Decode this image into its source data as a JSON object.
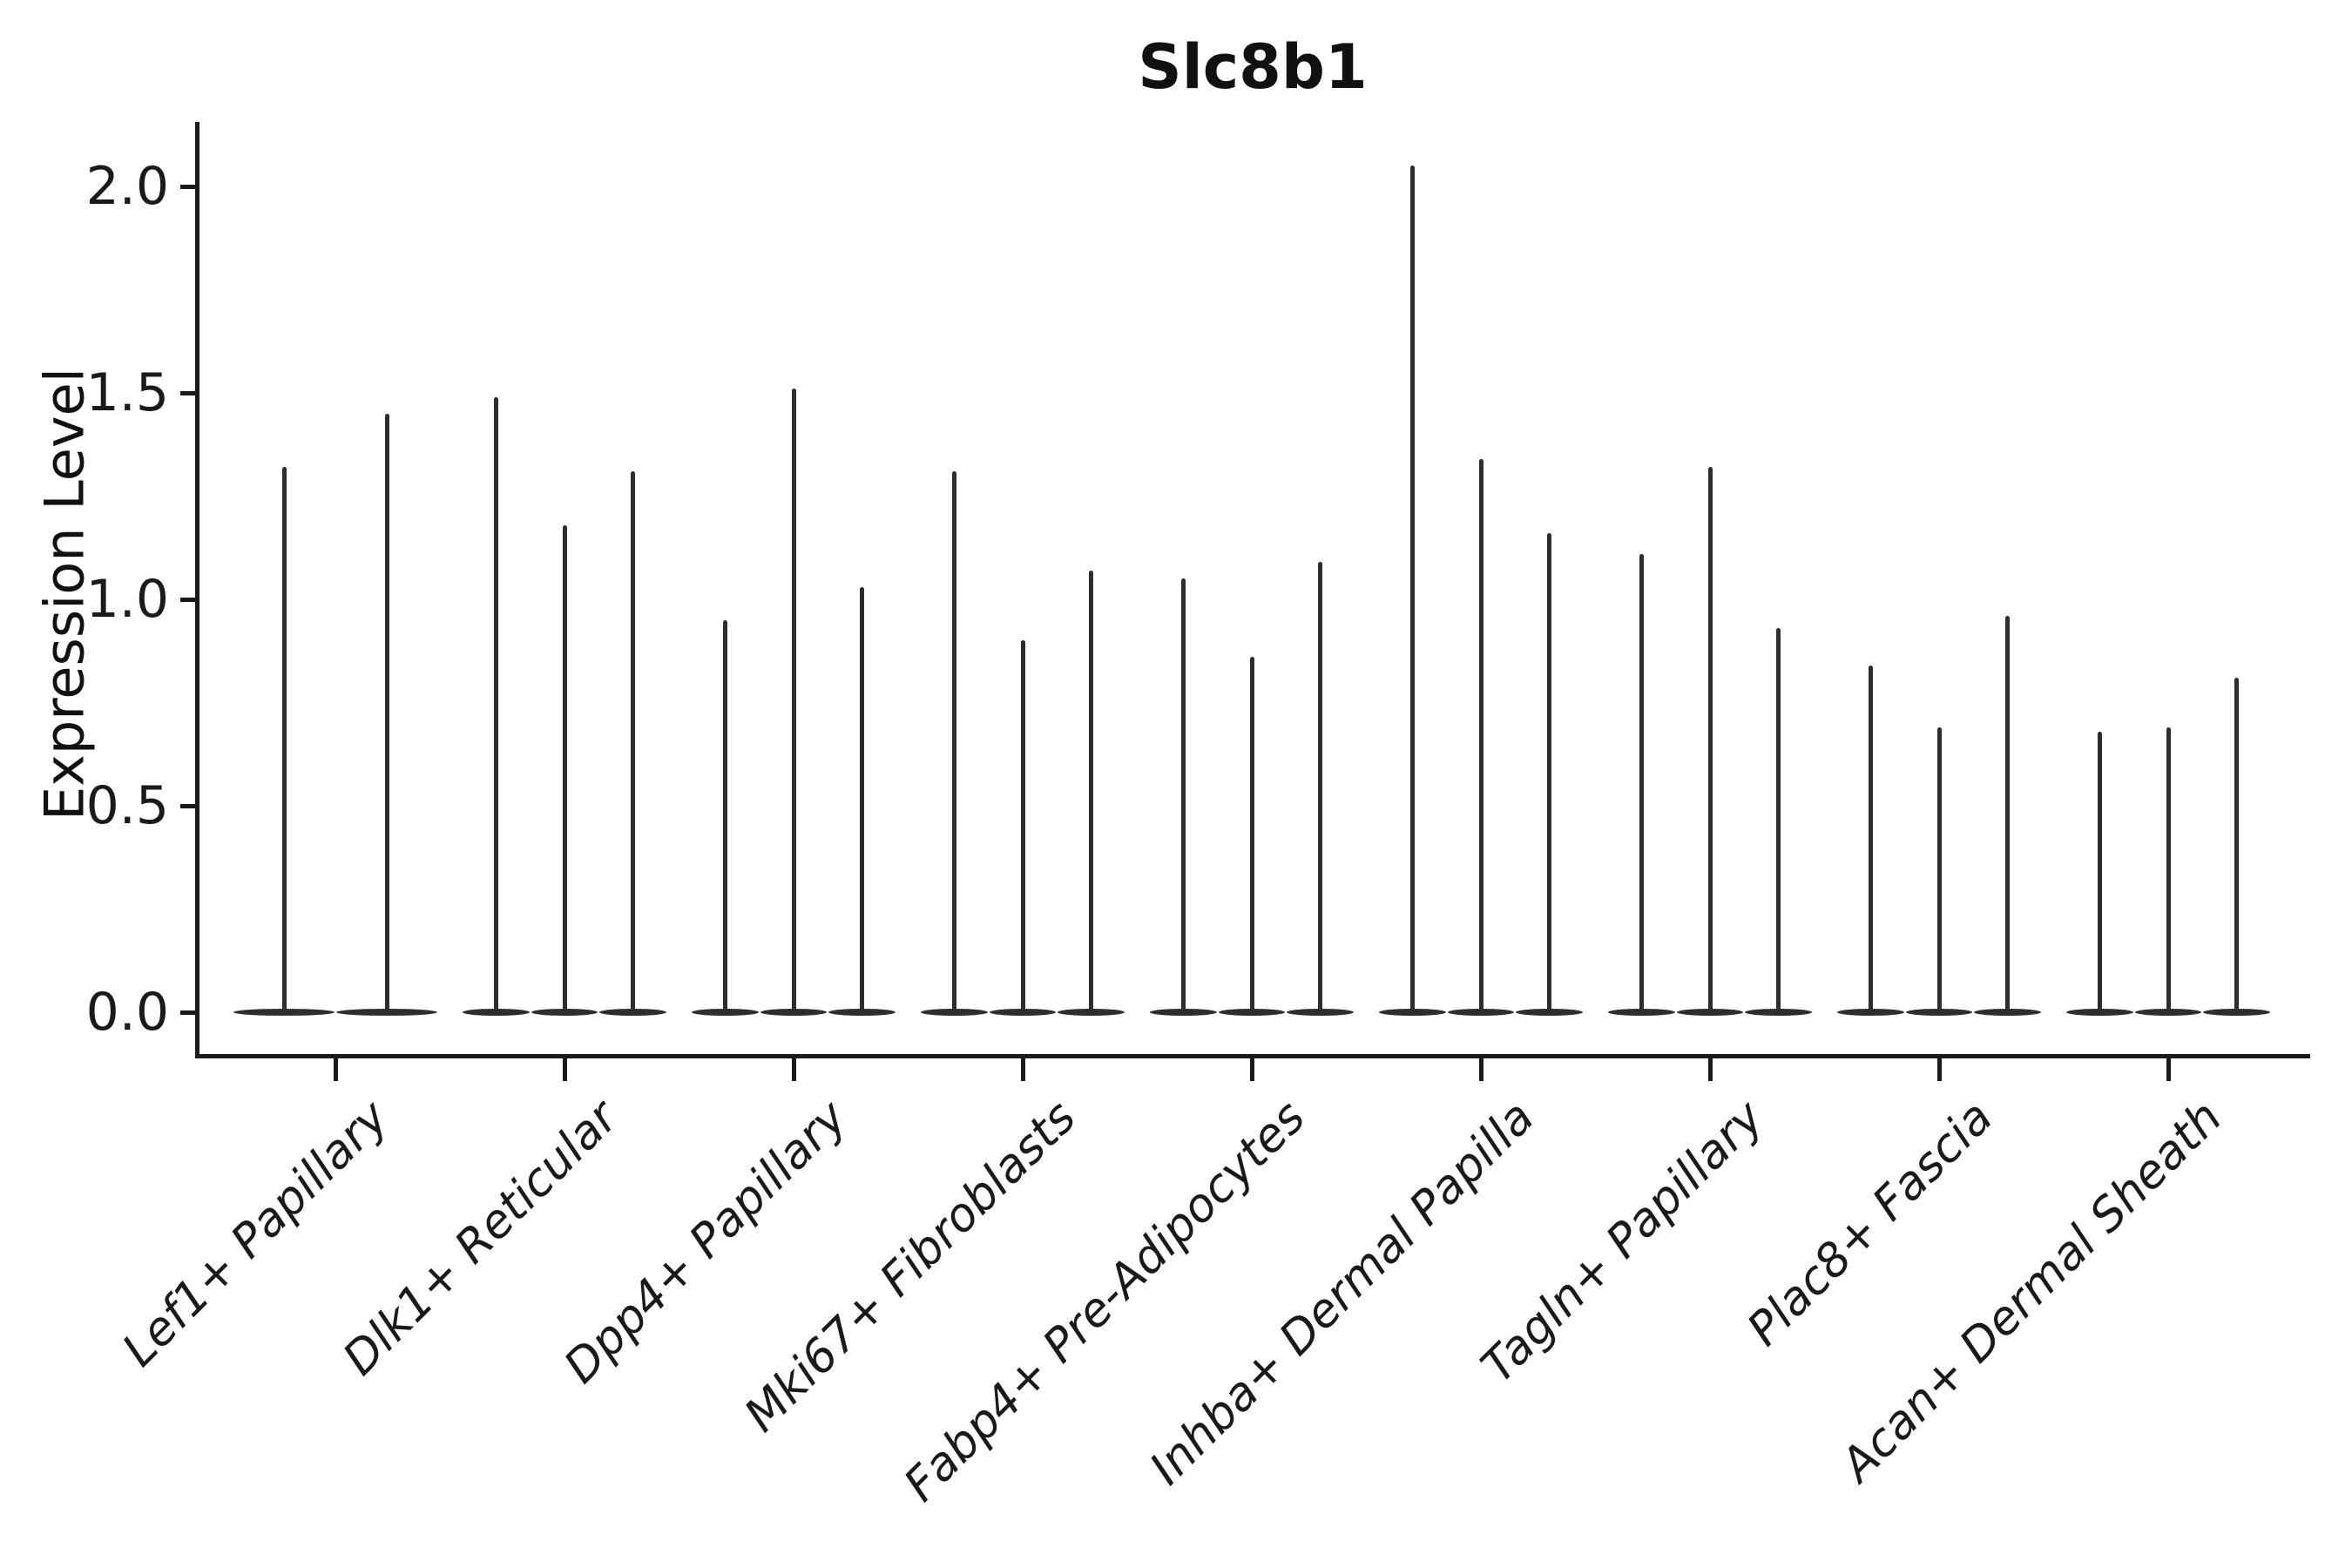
{
  "title": "Slc8b1",
  "y_axis": {
    "label": "Expression Level"
  },
  "chart_data": {
    "type": "violin",
    "title": "Slc8b1",
    "xlabel": "",
    "ylabel": "Expression Level",
    "ylim": [
      0,
      2.16
    ],
    "yticks": [
      "0.0",
      "0.5",
      "1.0",
      "1.5",
      "2.0"
    ],
    "ytick_values": [
      0.0,
      0.5,
      1.0,
      1.5,
      2.0
    ],
    "grid": false,
    "legend_position": "none",
    "description": "Grouped violin plot of Slc8b1 expression; each cell-type category holds 2-3 extremely thin violins (density concentrated at 0 with a narrow spike up to the maximum expression value).",
    "categories": [
      "Lef1+ Papillary",
      "Dlk1+ Reticular",
      "Dpp4+ Papillary",
      "Mki67+ Fibroblasts",
      "Fabp4+ Pre-Adipocytes",
      "Inhba+ Dermal Papilla",
      "Tagln+ Papillary",
      "Plac8+ Fascia",
      "Acan+ Dermal Sheath"
    ],
    "violins": [
      {
        "category": "Lef1+ Papillary",
        "spike_maxima": [
          1.32,
          1.45
        ]
      },
      {
        "category": "Dlk1+ Reticular",
        "spike_maxima": [
          1.49,
          1.18,
          1.31
        ]
      },
      {
        "category": "Dpp4+ Papillary",
        "spike_maxima": [
          0.95,
          1.51,
          1.03
        ]
      },
      {
        "category": "Mki67+ Fibroblasts",
        "spike_maxima": [
          1.31,
          0.9,
          1.07
        ]
      },
      {
        "category": "Fabp4+ Pre-Adipocytes",
        "spike_maxima": [
          1.05,
          0.86,
          1.09
        ]
      },
      {
        "category": "Inhba+ Dermal Papilla",
        "spike_maxima": [
          2.05,
          1.34,
          1.16
        ]
      },
      {
        "category": "Tagln+ Papillary",
        "spike_maxima": [
          1.11,
          1.32,
          0.93
        ]
      },
      {
        "category": "Plac8+ Fascia",
        "spike_maxima": [
          0.84,
          0.69,
          0.96
        ]
      },
      {
        "category": "Acan+ Dermal Sheath",
        "spike_maxima": [
          0.68,
          0.69,
          0.81
        ]
      }
    ],
    "baseline_value": 0.0,
    "colors": {
      "ink": "#1a1a1a",
      "violin": "#2e2e2e",
      "background": "#ffffff"
    }
  }
}
